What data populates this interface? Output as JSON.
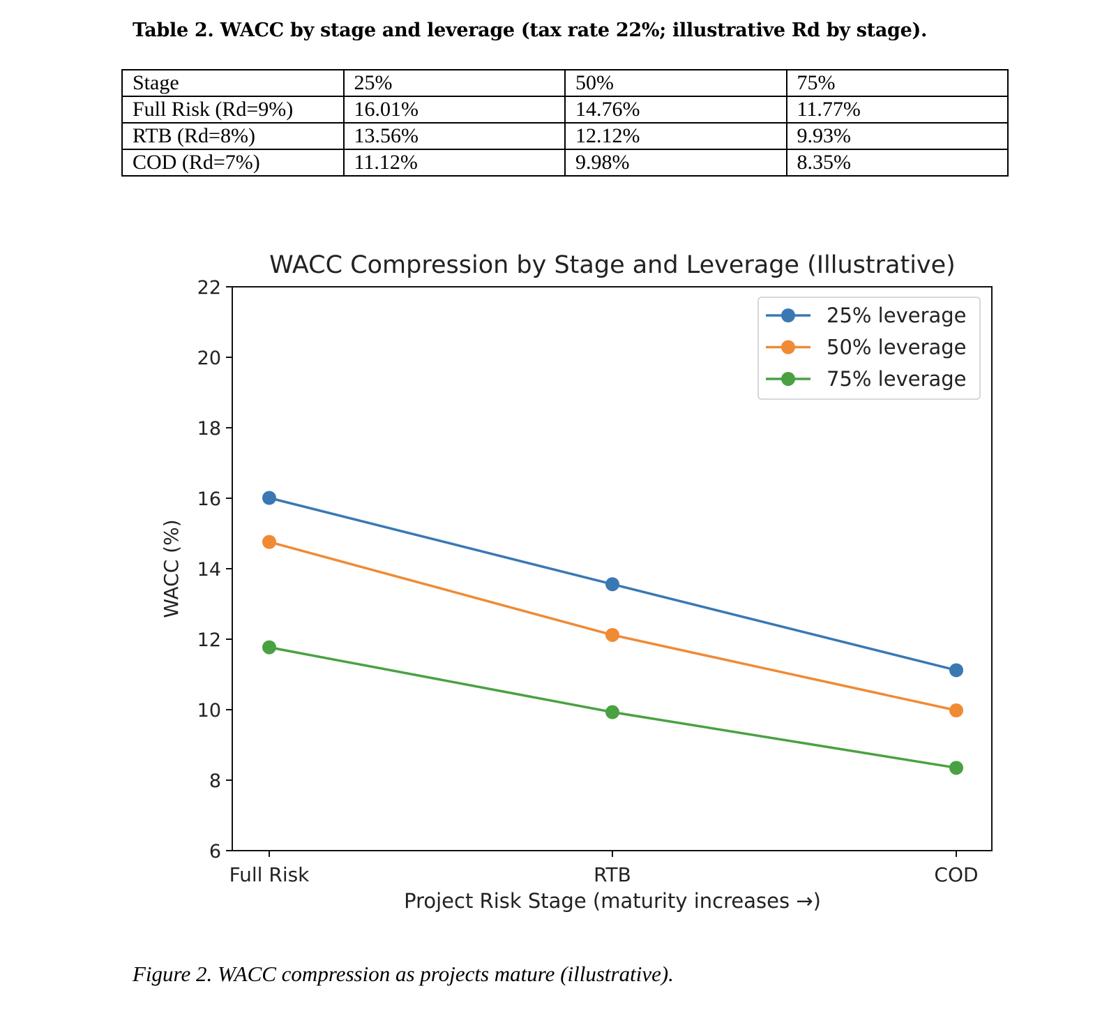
{
  "table": {
    "caption": "Table 2. WACC by stage and leverage (tax rate 22%; illustrative Rd by stage).",
    "header": [
      "Stage",
      "25%",
      "50%",
      "75%"
    ],
    "rows": [
      [
        "Full Risk (Rd=9%)",
        "16.01%",
        "14.76%",
        "11.77%"
      ],
      [
        "RTB (Rd=8%)",
        "13.56%",
        "12.12%",
        "9.93%"
      ],
      [
        "COD (Rd=7%)",
        "11.12%",
        "9.98%",
        "8.35%"
      ]
    ]
  },
  "chart_data": {
    "type": "line",
    "title": "WACC Compression by Stage and Leverage (Illustrative)",
    "xlabel": "Project Risk Stage (maturity increases →)",
    "ylabel": "WACC (%)",
    "categories": [
      "Full Risk",
      "RTB",
      "COD"
    ],
    "ylim": [
      6,
      22
    ],
    "yticks": [
      6,
      8,
      10,
      12,
      14,
      16,
      18,
      20,
      22
    ],
    "grid": false,
    "legend_position": "top-right",
    "series": [
      {
        "name": "25% leverage",
        "color": "#3a78b4",
        "values": [
          16.01,
          13.56,
          11.12
        ]
      },
      {
        "name": "50% leverage",
        "color": "#f08a35",
        "values": [
          14.76,
          12.12,
          9.98
        ]
      },
      {
        "name": "75% leverage",
        "color": "#4aa142",
        "values": [
          11.77,
          9.93,
          8.35
        ]
      }
    ]
  },
  "figure_caption": "Figure 2. WACC compression as projects mature (illustrative)."
}
